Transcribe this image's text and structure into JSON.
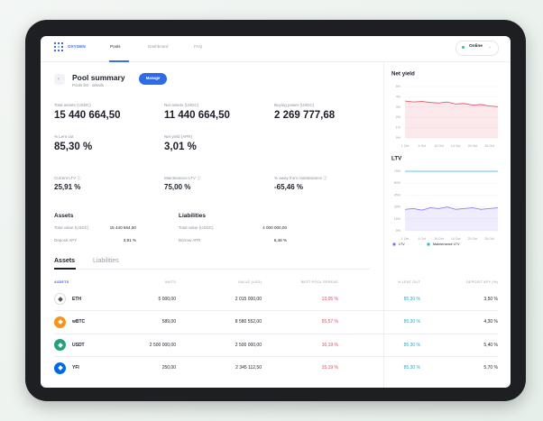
{
  "nav": {
    "brand": "OXYGEN",
    "tabs": [
      "Pools",
      "Dashboard",
      "FAQ"
    ],
    "status": "Online"
  },
  "summary": {
    "title": "Pool summary",
    "subtitle": "Pools list - details",
    "button": "Manage",
    "stats": [
      {
        "label": "Total assets (USDC)",
        "value": "15 440 664,50"
      },
      {
        "label": "Net assets (USDC)",
        "value": "11 440 664,50"
      },
      {
        "label": "Buying power (USDC)",
        "value": "2 269 777,68"
      },
      {
        "label": "% Lent out",
        "value": "85,30 %"
      },
      {
        "label": "Net yield (APR)",
        "value": "3,01 %"
      },
      {
        "label": "Current LTV",
        "value": "25,91 %"
      },
      {
        "label": "Maintenance LTV",
        "value": "75,00 %"
      },
      {
        "label": "% away from maintenance",
        "value": "-65,46 %"
      }
    ]
  },
  "assets": {
    "title": "Assets",
    "rows": [
      [
        "Total value (USDC)",
        "15 440 664,50"
      ],
      [
        "Deposit APY",
        "3,91 %"
      ]
    ]
  },
  "liabilities": {
    "title": "Liabilities",
    "rows": [
      [
        "Total value (USDC)",
        "4 000 000,00"
      ],
      [
        "Borrow APR",
        "6,48 %"
      ]
    ]
  },
  "tabs": [
    "Assets",
    "Liabilities"
  ],
  "table": {
    "columns": [
      "ASSETS",
      "UNITS",
      "VALUE (USD)",
      "BEST POOL SPREAD",
      "% LENT OUT",
      "DEPOSIT APY (%)"
    ],
    "rows": [
      [
        "ETH",
        "5 000,00",
        "2 015 000,00",
        "13,05 %",
        "85,30 %",
        "3,50 %"
      ],
      [
        "wBTC",
        "589,00",
        "8 580 552,00",
        "55,57 %",
        "85,30 %",
        "4,30 %"
      ],
      [
        "USDT",
        "2 500 000,00",
        "2 500 000,00",
        "16,19 %",
        "85,30 %",
        "5,40 %"
      ],
      [
        "YFI",
        "250,00",
        "2 345 112,50",
        "15,19 %",
        "85,30 %",
        "5,70 %"
      ]
    ]
  },
  "net_yield": {
    "type": "line",
    "title": "Net yield",
    "x": [
      "1 Oct",
      null,
      "4 Oct",
      null,
      "10 Oct",
      null,
      "14 Oct",
      null,
      "20 Oct",
      null,
      "26 Oct",
      null
    ],
    "ylim": [
      0,
      5
    ],
    "yticks": [
      {
        "value": 0,
        "label": "0%"
      },
      {
        "value": 1,
        "label": "1%"
      },
      {
        "value": 2,
        "label": "2%"
      },
      {
        "value": 3,
        "label": "3%"
      },
      {
        "value": 4,
        "label": "4%"
      },
      {
        "value": 5,
        "label": "5%"
      }
    ],
    "color": "#e0475b",
    "values": [
      3.6,
      3.5,
      3.55,
      3.45,
      3.4,
      3.5,
      3.3,
      3.35,
      3.2,
      3.25,
      3.1,
      3.05
    ]
  },
  "ltv": {
    "type": "line",
    "title": "LTV",
    "x": [
      "1 Oct",
      null,
      "4 Oct",
      null,
      "10 Oct",
      null,
      "14 Oct",
      null,
      "20 Oct",
      null,
      "26 Oct",
      null
    ],
    "ylim": [
      0,
      75
    ],
    "yticks": [
      {
        "value": 0,
        "label": "0%"
      },
      {
        "value": 15,
        "label": "15%"
      },
      {
        "value": 30,
        "label": "30%"
      },
      {
        "value": 45,
        "label": "45%"
      },
      {
        "value": 60,
        "label": "60%"
      },
      {
        "value": 75,
        "label": "75%"
      }
    ],
    "series": [
      {
        "name": "LTV",
        "color": "#7b6cf0",
        "values": [
          27,
          28,
          26,
          29,
          28,
          30,
          27,
          28,
          29,
          27,
          28,
          29
        ]
      },
      {
        "name": "Maintenance LTV",
        "color": "#2bb5d8",
        "values": [
          75,
          75,
          75,
          75,
          75,
          75,
          75,
          75,
          75,
          75,
          75,
          75
        ]
      }
    ]
  }
}
